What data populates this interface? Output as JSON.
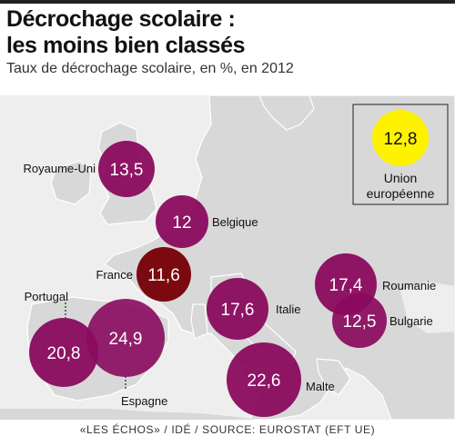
{
  "header": {
    "title_line1": "Décrochage scolaire :",
    "title_line2": "les moins bien classés",
    "subtitle": "Taux de décrochage scolaire, en %, en 2012"
  },
  "map": {
    "land_color": "#d8d8d8",
    "sea_color": "#eeeeee",
    "bubble_color": "#8a0a5e",
    "bubble_highlight_color": "#7a0a10",
    "eu_color": "#fff200",
    "countries": [
      {
        "name": "Royaume-Uni",
        "value": "13,5"
      },
      {
        "name": "Belgique",
        "value": "12"
      },
      {
        "name": "France",
        "value": "11,6"
      },
      {
        "name": "Portugal",
        "value": "20,8"
      },
      {
        "name": "Espagne",
        "value": "24,9"
      },
      {
        "name": "Italie",
        "value": "17,6"
      },
      {
        "name": "Malte",
        "value": "22,6"
      },
      {
        "name": "Roumanie",
        "value": "17,4"
      },
      {
        "name": "Bulgarie",
        "value": "12,5"
      }
    ],
    "eu": {
      "value": "12,8",
      "label_line1": "Union",
      "label_line2": "européenne"
    }
  },
  "footer": {
    "publication": "«LES ÉCHOS»",
    "author": "IDÉ",
    "source": "SOURCE: EUROSTAT (EFT UE)"
  }
}
